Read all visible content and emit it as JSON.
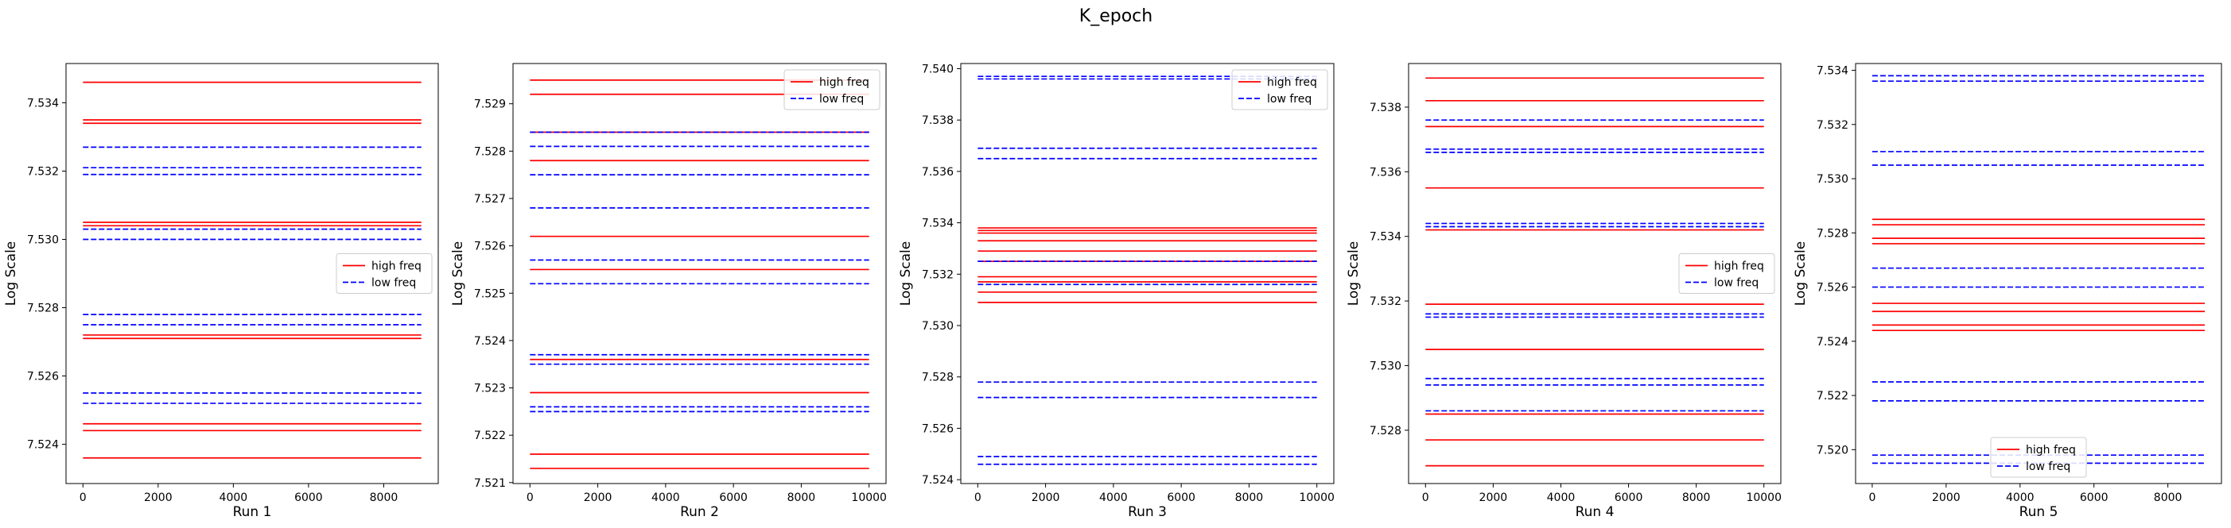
{
  "suptitle": "K_epoch",
  "legend_labels": [
    "high freq",
    "low freq"
  ],
  "colors": {
    "high freq": "#ff0000",
    "low freq": "#0000ff"
  },
  "chart_data": [
    {
      "type": "line",
      "xlabel": "Run 1",
      "ylabel": "Log Scale",
      "xlim": [
        -450,
        9450
      ],
      "ylim": [
        7.52285,
        7.53515
      ],
      "xticks": [
        0,
        2000,
        4000,
        6000,
        8000
      ],
      "yticks": [
        7.524,
        7.526,
        7.528,
        7.53,
        7.532,
        7.534
      ],
      "ytick_decimals": 3,
      "legend": "center-right",
      "x": [
        0,
        9000
      ],
      "series": [
        {
          "name": "high freq",
          "style": "solid",
          "color": "#ff0000",
          "levels": [
            7.5346,
            7.5335,
            7.5334,
            7.5305,
            7.5304,
            7.5272,
            7.5271,
            7.5246,
            7.5244,
            7.5236
          ]
        },
        {
          "name": "low freq",
          "style": "dashed",
          "color": "#0000ff",
          "levels": [
            7.5327,
            7.5321,
            7.5319,
            7.5303,
            7.53,
            7.5278,
            7.5275,
            7.5255,
            7.5252
          ]
        }
      ]
    },
    {
      "type": "line",
      "xlabel": "Run 2",
      "ylabel": "Log Scale",
      "xlim": [
        -500,
        10500
      ],
      "ylim": [
        7.52098,
        7.52985
      ],
      "xticks": [
        0,
        2000,
        4000,
        6000,
        8000,
        10000
      ],
      "yticks": [
        7.521,
        7.522,
        7.523,
        7.524,
        7.525,
        7.526,
        7.527,
        7.528,
        7.529
      ],
      "ytick_decimals": 3,
      "legend": "upper-right",
      "x": [
        0,
        10000
      ],
      "series": [
        {
          "name": "high freq",
          "style": "solid",
          "color": "#ff0000",
          "levels": [
            7.5295,
            7.5292,
            7.5284,
            7.5278,
            7.5262,
            7.5255,
            7.5236,
            7.5229,
            7.5216,
            7.5213
          ]
        },
        {
          "name": "low freq",
          "style": "dashed",
          "color": "#0000ff",
          "levels": [
            7.5284,
            7.5281,
            7.5275,
            7.5268,
            7.5257,
            7.5252,
            7.5237,
            7.5235,
            7.5226,
            7.5225
          ]
        }
      ]
    },
    {
      "type": "line",
      "xlabel": "Run 3",
      "ylabel": "Log Scale",
      "xlim": [
        -500,
        10500
      ],
      "ylim": [
        7.52385,
        7.5402
      ],
      "xticks": [
        0,
        2000,
        4000,
        6000,
        8000,
        10000
      ],
      "yticks": [
        7.524,
        7.526,
        7.528,
        7.53,
        7.532,
        7.534,
        7.536,
        7.538,
        7.54
      ],
      "ytick_decimals": 3,
      "legend": "upper-right",
      "x": [
        0,
        10000
      ],
      "series": [
        {
          "name": "high freq",
          "style": "solid",
          "color": "#ff0000",
          "levels": [
            7.5338,
            7.5337,
            7.5336,
            7.5333,
            7.5329,
            7.5325,
            7.5319,
            7.5317,
            7.5313,
            7.5309
          ]
        },
        {
          "name": "low freq",
          "style": "dashed",
          "color": "#0000ff",
          "levels": [
            7.5397,
            7.5396,
            7.5369,
            7.5365,
            7.5325,
            7.5316,
            7.5278,
            7.5272,
            7.5249,
            7.5246
          ]
        }
      ]
    },
    {
      "type": "line",
      "xlabel": "Run 4",
      "ylabel": "Log Scale",
      "xlim": [
        -500,
        10500
      ],
      "ylim": [
        7.52635,
        7.53935
      ],
      "xticks": [
        0,
        2000,
        4000,
        6000,
        8000,
        10000
      ],
      "yticks": [
        7.528,
        7.53,
        7.532,
        7.534,
        7.536,
        7.538
      ],
      "ytick_decimals": 3,
      "legend": "center-right",
      "x": [
        0,
        10000
      ],
      "series": [
        {
          "name": "high freq",
          "style": "solid",
          "color": "#ff0000",
          "levels": [
            7.5389,
            7.5382,
            7.5374,
            7.5355,
            7.5342,
            7.5319,
            7.5305,
            7.5285,
            7.5277,
            7.5269
          ]
        },
        {
          "name": "low freq",
          "style": "dashed",
          "color": "#0000ff",
          "levels": [
            7.5376,
            7.5367,
            7.5366,
            7.5344,
            7.5343,
            7.5316,
            7.5315,
            7.5296,
            7.5294,
            7.5286
          ]
        }
      ]
    },
    {
      "type": "line",
      "xlabel": "Run 5",
      "ylabel": "Log Scale",
      "xlim": [
        -450,
        9450
      ],
      "ylim": [
        7.51875,
        7.53425
      ],
      "xticks": [
        0,
        2000,
        4000,
        6000,
        8000
      ],
      "yticks": [
        7.52,
        7.522,
        7.524,
        7.526,
        7.528,
        7.53,
        7.532,
        7.534
      ],
      "ytick_decimals": 3,
      "legend": "lower-center",
      "x": [
        0,
        9000
      ],
      "series": [
        {
          "name": "high freq",
          "style": "solid",
          "color": "#ff0000",
          "levels": [
            7.5285,
            7.5283,
            7.5278,
            7.5276,
            7.5254,
            7.5251,
            7.5246,
            7.5244
          ]
        },
        {
          "name": "low freq",
          "style": "dashed",
          "color": "#0000ff",
          "levels": [
            7.5338,
            7.5336,
            7.531,
            7.5305,
            7.5267,
            7.526,
            7.5225,
            7.5218,
            7.5198,
            7.5195
          ]
        }
      ]
    }
  ]
}
